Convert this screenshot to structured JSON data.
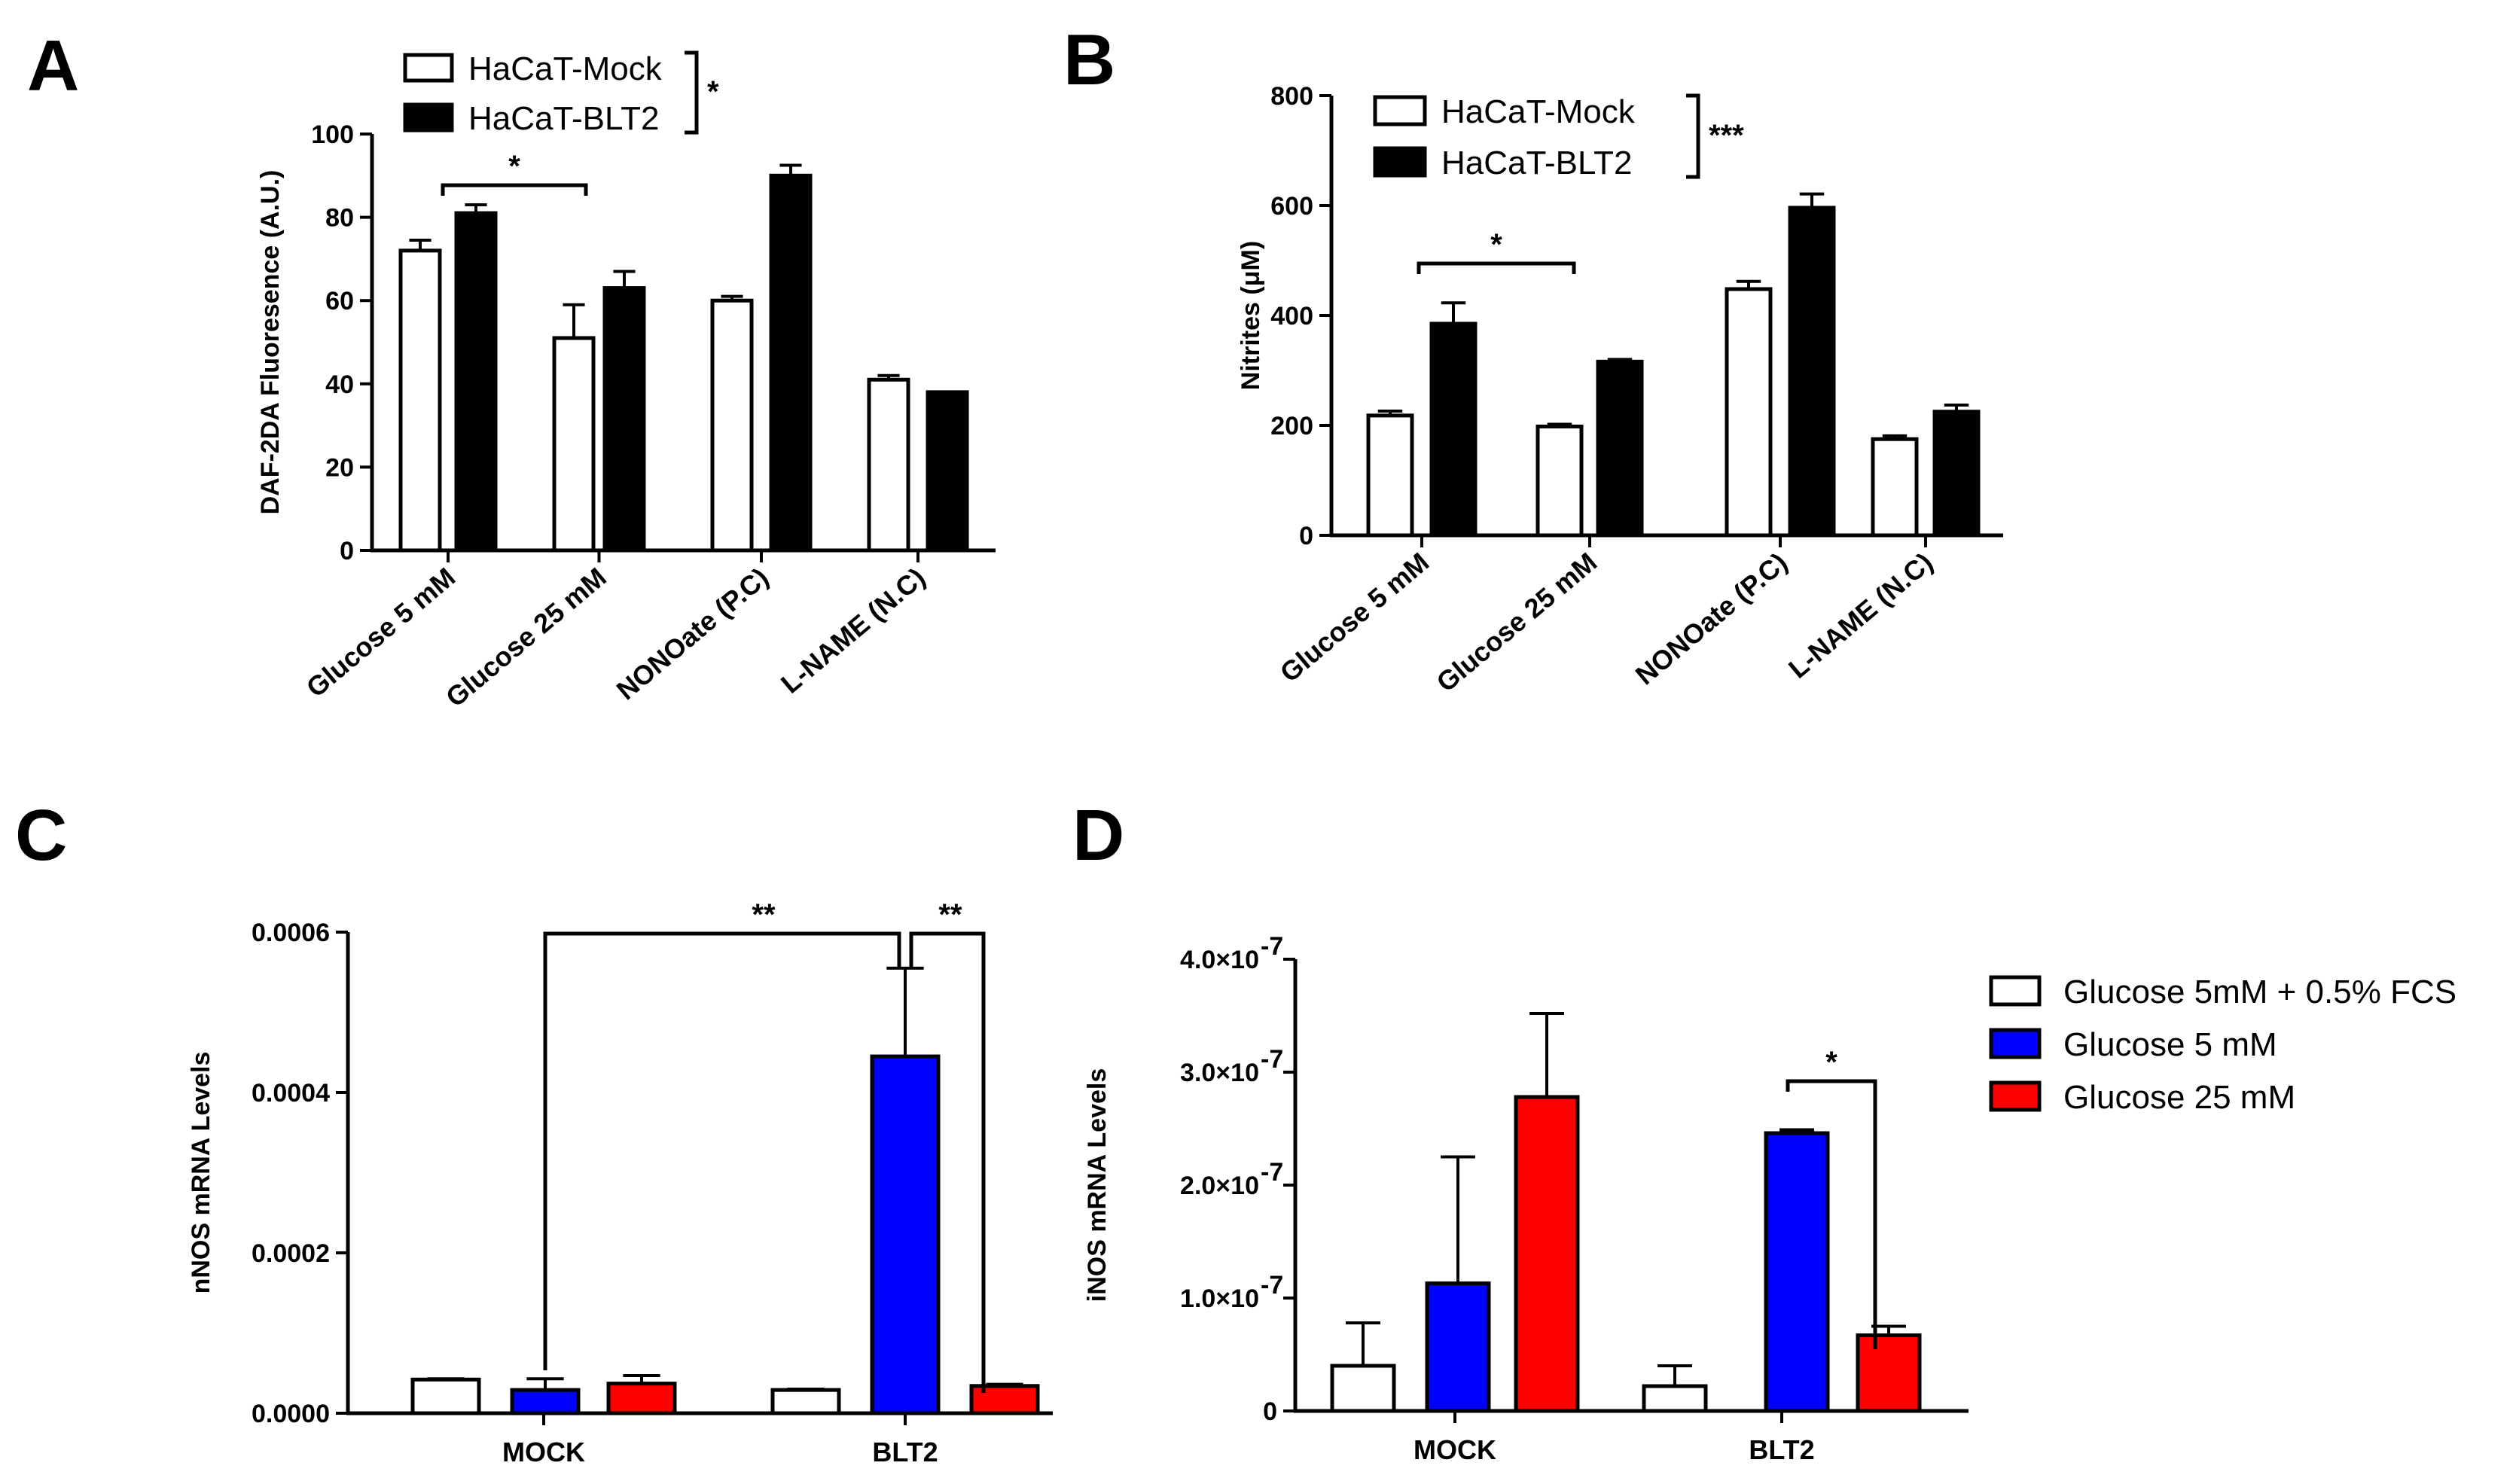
{
  "chart_data": [
    {
      "panel": "A",
      "type": "bar",
      "ylabel": "DAF-2DA Fluoresence (A.U.)",
      "xlabel": "",
      "ylim": [
        0,
        100
      ],
      "yticks": [
        "0",
        "20",
        "40",
        "60",
        "80",
        "100"
      ],
      "categories": [
        "Glucose 5 mM",
        "Glucose 25 mM",
        "NONOate (P.C)",
        "L-NAME (N.C)"
      ],
      "series": [
        {
          "name": "HaCaT-Mock",
          "color": "#ffffff",
          "values": [
            72,
            51,
            60,
            41
          ],
          "errors": [
            2.5,
            8,
            1,
            1
          ]
        },
        {
          "name": "HaCaT-BLT2",
          "color": "#000000",
          "values": [
            81,
            63,
            90,
            38
          ],
          "errors": [
            2,
            4,
            2.5,
            0
          ]
        }
      ],
      "legend_bracket_label": "*",
      "comparisons": [
        {
          "label": "*"
        }
      ]
    },
    {
      "panel": "B",
      "type": "bar",
      "ylabel": "Nitrites (μM)",
      "xlabel": "",
      "ylim": [
        0,
        800
      ],
      "yticks": [
        "0",
        "200",
        "400",
        "600",
        "800"
      ],
      "categories": [
        "Glucose 5 mM",
        "Glucose 25 mM",
        "NONOate (P.C)",
        "L-NAME (N.C)"
      ],
      "series": [
        {
          "name": "HaCaT-Mock",
          "color": "#ffffff",
          "values": [
            218,
            198,
            448,
            175
          ],
          "errors": [
            8,
            4,
            14,
            6
          ]
        },
        {
          "name": "HaCaT-BLT2",
          "color": "#000000",
          "values": [
            385,
            316,
            596,
            225
          ],
          "errors": [
            38,
            4,
            25,
            12
          ]
        }
      ],
      "legend_bracket_label": "***",
      "comparisons": [
        {
          "label": "*"
        }
      ]
    },
    {
      "panel": "C",
      "type": "bar",
      "ylabel": "nNOS mRNA Levels",
      "xlabel": "",
      "ylim": [
        0,
        0.0006
      ],
      "yticks": [
        "0.0000",
        "0.0002",
        "0.0004",
        "0.0006"
      ],
      "categories": [
        "MOCK",
        "BLT2"
      ],
      "series": [
        {
          "name": "Glucose 5mM + 0.5% FCS",
          "color": "#ffffff",
          "values": [
            4.2e-05,
            2.9e-05
          ],
          "errors": [
            1e-06,
            1e-06
          ]
        },
        {
          "name": "Glucose 5 mM",
          "color": "#0000ff",
          "values": [
            2.9e-05,
            0.000445
          ],
          "errors": [
            1.4e-05,
            0.00011
          ]
        },
        {
          "name": "Glucose 25 mM",
          "color": "#ff0000",
          "values": [
            3.7e-05,
            3.4e-05
          ],
          "errors": [
            1e-05,
            2e-06
          ]
        }
      ],
      "comparisons": [
        {
          "label": "**"
        },
        {
          "label": "**"
        }
      ]
    },
    {
      "panel": "D",
      "type": "bar",
      "ylabel": "iNOS mRNA Levels",
      "xlabel": "",
      "ylim": [
        0,
        4e-07
      ],
      "yticks": [
        {
          "mant": "0",
          "exp": ""
        },
        {
          "mant": "1.0×10",
          "exp": "-7"
        },
        {
          "mant": "2.0×10",
          "exp": "-7"
        },
        {
          "mant": "3.0×10",
          "exp": "-7"
        },
        {
          "mant": "4.0×10",
          "exp": "-7"
        }
      ],
      "categories": [
        "MOCK",
        "BLT2"
      ],
      "series": [
        {
          "name": "Glucose 5mM + 0.5% FCS",
          "color": "#ffffff",
          "values": [
            4e-08,
            2.2e-08
          ],
          "errors": [
            3.8e-08,
            1.8e-08
          ]
        },
        {
          "name": "Glucose 5 mM",
          "color": "#0000ff",
          "values": [
            1.13e-07,
            2.46e-07
          ],
          "errors": [
            1.12e-07,
            3e-09
          ]
        },
        {
          "name": "Glucose 25 mM",
          "color": "#ff0000",
          "values": [
            2.78e-07,
            6.7e-08
          ],
          "errors": [
            7.4e-08,
            8e-09
          ]
        }
      ],
      "comparisons": [
        {
          "label": "*"
        }
      ]
    }
  ],
  "legend_cd": [
    "Glucose 5mM + 0.5% FCS",
    "Glucose 5 mM",
    "Glucose 25 mM"
  ],
  "panel_labels": [
    "A",
    "B",
    "C",
    "D"
  ]
}
